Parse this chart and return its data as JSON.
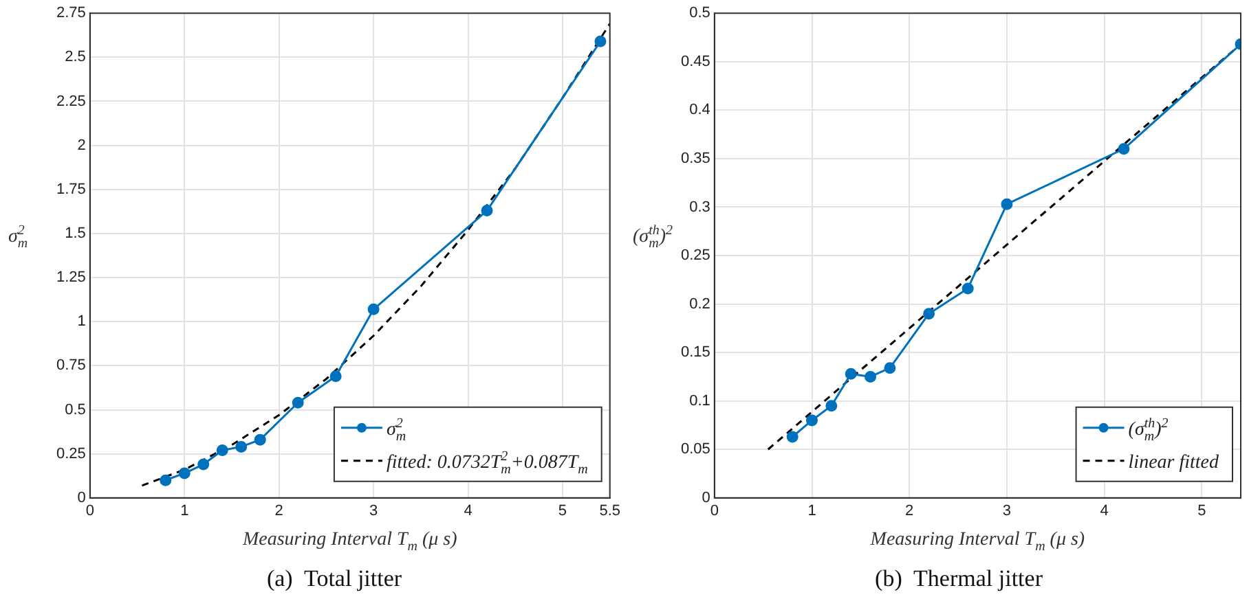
{
  "chart_data": [
    {
      "type": "line",
      "title": "(a)  Total jitter",
      "xlabel": "Measuring Interval T$_{m}$ (μ s)",
      "ylabel": "σ$_{m}$$^{2}$",
      "xlim": [
        0,
        5.5
      ],
      "xticks": [
        0,
        1,
        2,
        3,
        4,
        5,
        5.5
      ],
      "ylim": [
        0,
        2.75
      ],
      "yticks": [
        0,
        0.25,
        0.5,
        0.75,
        1,
        1.25,
        1.5,
        1.75,
        2,
        2.25,
        2.5,
        2.75
      ],
      "grid": true,
      "legend": "bottom right",
      "series": [
        {
          "name": "σ$_{m}$$^{2}$",
          "color": "#0072bd",
          "marker": "circle",
          "line_style": "solid",
          "x": [
            0.8,
            1,
            1.2,
            1.4,
            1.6,
            1.8,
            2.2,
            2.6,
            3,
            4.2,
            5.4
          ],
          "values": [
            0.1,
            0.14,
            0.19,
            0.27,
            0.29,
            0.33,
            0.54,
            0.69,
            1.07,
            1.63,
            2.59
          ]
        },
        {
          "name": "fitted: 0.0732T$_{m}$$^{2}$+0.087T$_{m}$",
          "color": "#000000",
          "marker": "none",
          "line_style": "dashed",
          "x": [
            0.55,
            1,
            1.5,
            2,
            2.5,
            3,
            3.5,
            4,
            4.5,
            5,
            5.5
          ],
          "values": [
            0.07,
            0.16,
            0.3,
            0.47,
            0.675,
            0.92,
            1.2,
            1.52,
            1.87,
            2.27,
            2.69
          ]
        }
      ]
    },
    {
      "type": "line",
      "title": "(b)  Thermal jitter",
      "xlabel": "Measuring Interval T$_{m}$ (μ s)",
      "ylabel": "(σ$^{th}$$_{m}$)$^{2}$",
      "xlim": [
        0,
        5.4
      ],
      "xticks": [
        0,
        1,
        2,
        3,
        4,
        5
      ],
      "ylim": [
        0,
        0.5
      ],
      "yticks": [
        0,
        0.05,
        0.1,
        0.15,
        0.2,
        0.25,
        0.3,
        0.35,
        0.4,
        0.45,
        0.5
      ],
      "grid": true,
      "legend": "bottom right",
      "series": [
        {
          "name": "(σ$^{th}$$_{m}$)$^{2}$",
          "color": "#0072bd",
          "marker": "circle",
          "line_style": "solid",
          "x": [
            0.8,
            1,
            1.2,
            1.4,
            1.6,
            1.8,
            2.2,
            2.6,
            3,
            4.2,
            5.4
          ],
          "values": [
            0.063,
            0.08,
            0.095,
            0.128,
            0.125,
            0.134,
            0.19,
            0.216,
            0.303,
            0.36,
            0.468
          ]
        },
        {
          "name": "linear fitted",
          "color": "#000000",
          "marker": "none",
          "line_style": "dashed",
          "x": [
            0.55,
            5.4
          ],
          "values": [
            0.05,
            0.468
          ]
        }
      ]
    }
  ]
}
